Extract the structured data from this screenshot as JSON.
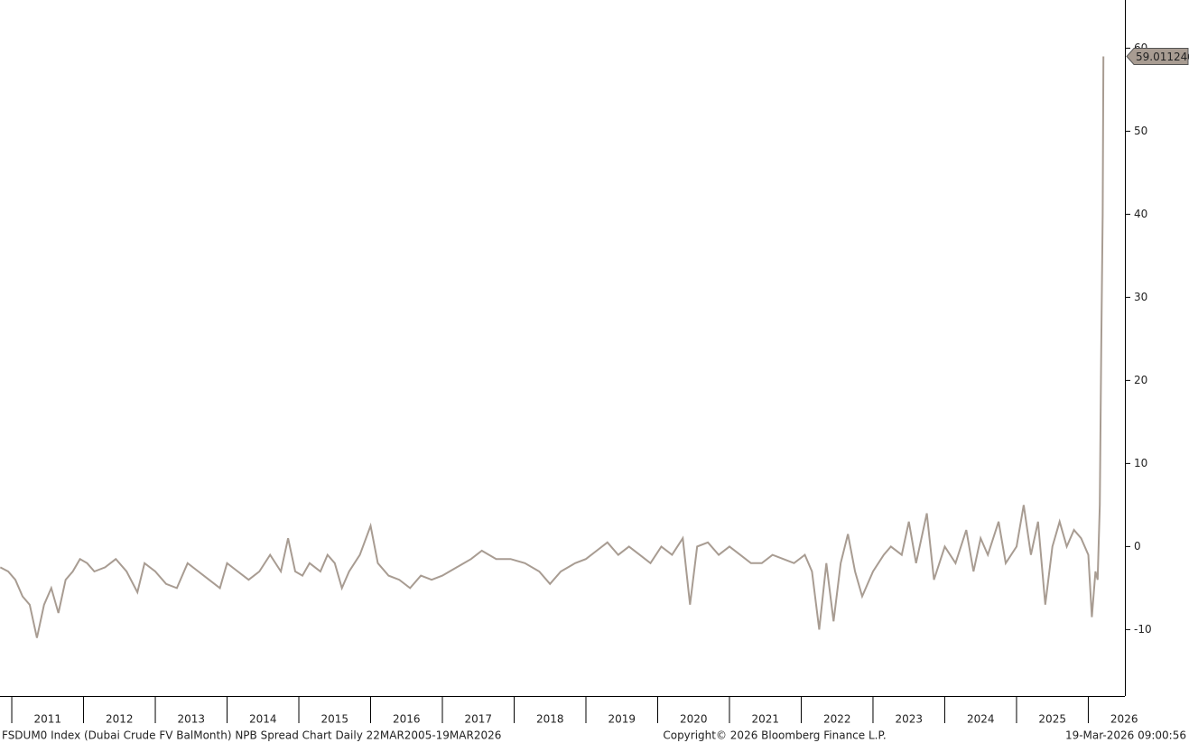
{
  "chart_data": {
    "type": "line",
    "footer_left": "FSDUM0 Index (Dubai Crude FV BalMonth) NPB Spread Chart Daily 22MAR2005-19MAR2026",
    "footer_center": "Copyright© 2026 Bloomberg Finance L.P.",
    "footer_right": "19-Mar-2026 09:00:56",
    "x": [
      2010.84,
      2010.95,
      2011.05,
      2011.15,
      2011.25,
      2011.35,
      2011.45,
      2011.55,
      2011.65,
      2011.75,
      2011.85,
      2011.95,
      2012.05,
      2012.15,
      2012.3,
      2012.45,
      2012.6,
      2012.75,
      2012.85,
      2013.0,
      2013.15,
      2013.3,
      2013.45,
      2013.6,
      2013.75,
      2013.9,
      2014.0,
      2014.15,
      2014.3,
      2014.45,
      2014.6,
      2014.75,
      2014.85,
      2014.95,
      2015.05,
      2015.15,
      2015.3,
      2015.4,
      2015.5,
      2015.6,
      2015.7,
      2015.85,
      2016.0,
      2016.1,
      2016.25,
      2016.4,
      2016.55,
      2016.7,
      2016.85,
      2017.0,
      2017.2,
      2017.4,
      2017.55,
      2017.75,
      2017.95,
      2018.15,
      2018.35,
      2018.5,
      2018.65,
      2018.85,
      2019.0,
      2019.15,
      2019.3,
      2019.45,
      2019.6,
      2019.75,
      2019.9,
      2020.05,
      2020.2,
      2020.35,
      2020.45,
      2020.55,
      2020.7,
      2020.85,
      2021.0,
      2021.15,
      2021.3,
      2021.45,
      2021.6,
      2021.75,
      2021.9,
      2022.05,
      2022.15,
      2022.25,
      2022.35,
      2022.45,
      2022.55,
      2022.65,
      2022.75,
      2022.85,
      2023.0,
      2023.15,
      2023.25,
      2023.4,
      2023.5,
      2023.6,
      2023.75,
      2023.85,
      2024.0,
      2024.15,
      2024.3,
      2024.4,
      2024.5,
      2024.6,
      2024.75,
      2024.85,
      2025.0,
      2025.1,
      2025.2,
      2025.3,
      2025.4,
      2025.5,
      2025.6,
      2025.7,
      2025.8,
      2025.9,
      2026.0,
      2026.05,
      2026.1,
      2026.13,
      2026.16,
      2026.18,
      2026.2,
      2026.21
    ],
    "series": [
      {
        "color": "#a89c92",
        "values": [
          -2.5,
          -3,
          -4,
          -6,
          -7,
          -11,
          -7,
          -5,
          -8,
          -4,
          -3,
          -1.5,
          -2,
          -3,
          -2.5,
          -1.5,
          -3,
          -5.5,
          -2,
          -3,
          -4.5,
          -5,
          -2,
          -3,
          -4,
          -5,
          -2,
          -3,
          -4,
          -3,
          -1,
          -3,
          1,
          -3,
          -3.5,
          -2,
          -3,
          -1,
          -2,
          -5,
          -3,
          -1,
          2.5,
          -2,
          -3.5,
          -4,
          -5,
          -3.5,
          -4,
          -3.5,
          -2.5,
          -1.5,
          -0.5,
          -1.5,
          -1.5,
          -2,
          -3,
          -4.5,
          -3,
          -2,
          -1.5,
          -0.5,
          0.5,
          -1,
          0,
          -1,
          -2,
          0,
          -1,
          1,
          -7,
          0,
          0.5,
          -1,
          0,
          -1,
          -2,
          -2,
          -1,
          -1.5,
          -2,
          -1,
          -3,
          -10,
          -2,
          -9,
          -2,
          1.5,
          -3,
          -6,
          -3,
          -1,
          0,
          -1,
          3,
          -2,
          4,
          -4,
          0,
          -2,
          2,
          -3,
          1,
          -1,
          3,
          -2,
          0,
          5,
          -1,
          3,
          -7,
          0,
          3,
          0,
          2,
          1,
          -1,
          -8.5,
          -3,
          -4,
          5,
          24,
          40,
          59.011246
        ]
      }
    ],
    "xlim": [
      2010.836,
      2026.51
    ],
    "xticks": [
      {
        "value": 2011,
        "label": "2011"
      },
      {
        "value": 2012,
        "label": "2012"
      },
      {
        "value": 2013,
        "label": "2013"
      },
      {
        "value": 2014,
        "label": "2014"
      },
      {
        "value": 2015,
        "label": "2015"
      },
      {
        "value": 2016,
        "label": "2016"
      },
      {
        "value": 2017,
        "label": "2017"
      },
      {
        "value": 2018,
        "label": "2018"
      },
      {
        "value": 2019,
        "label": "2019"
      },
      {
        "value": 2020,
        "label": "2020"
      },
      {
        "value": 2021,
        "label": "2021"
      },
      {
        "value": 2022,
        "label": "2022"
      },
      {
        "value": 2023,
        "label": "2023"
      },
      {
        "value": 2024,
        "label": "2024"
      },
      {
        "value": 2025,
        "label": "2025"
      },
      {
        "value": 2026,
        "label": "2026"
      }
    ],
    "ylim": [
      -18,
      65.8
    ],
    "yticks": [
      -10,
      0,
      10,
      20,
      30,
      40,
      50,
      60
    ]
  }
}
